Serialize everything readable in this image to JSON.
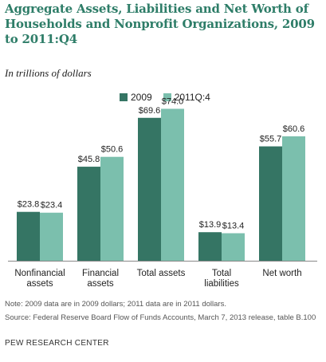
{
  "title": "Aggregate Assets, Liabilities and Net Worth of Households and Nonprofit Organizations, 2009 to 2011:Q4",
  "subtitle": "In trillions of dollars",
  "legend": {
    "series1": "2009",
    "series2": "2011Q:4"
  },
  "colors": {
    "series1": "#357564",
    "series2": "#7bbfad",
    "title": "#2e7d68"
  },
  "chart_data": {
    "type": "bar",
    "categories": [
      [
        "Nonfinancial",
        "assets"
      ],
      [
        "Financial",
        "assets"
      ],
      [
        "Total assets"
      ],
      [
        "Total",
        "liabilities"
      ],
      [
        "Net worth"
      ]
    ],
    "series": [
      {
        "name": "2009",
        "values": [
          23.8,
          45.8,
          69.6,
          13.9,
          55.7
        ],
        "labels": [
          "$23.8",
          "$45.8",
          "$69.6",
          "$13.9",
          "$55.7"
        ]
      },
      {
        "name": "2011Q:4",
        "values": [
          23.4,
          50.6,
          74.0,
          13.4,
          60.6
        ],
        "labels": [
          "$23.4",
          "$50.6",
          "$74.0",
          "$13.4",
          "$60.6"
        ]
      }
    ],
    "ylim": [
      0,
      80
    ],
    "grid": false,
    "legend_position": "top"
  },
  "note": "Note: 2009 data are in 2009 dollars; 2011 data are in 2011 dollars.",
  "source": "Source: Federal Reserve Board Flow of Funds Accounts, March 7, 2013 release, table B.100",
  "brand": "PEW RESEARCH CENTER"
}
